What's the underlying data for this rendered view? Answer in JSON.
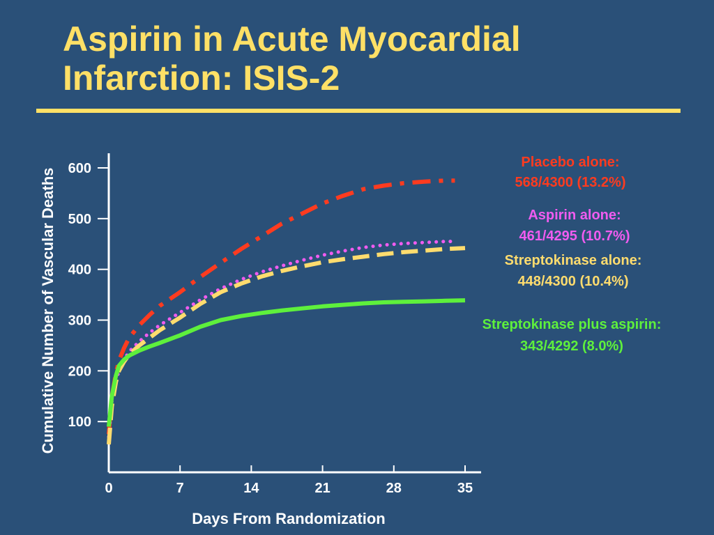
{
  "slide": {
    "title_line1": "Aspirin in Acute Myocardial",
    "title_line2": "Infarction: ISIS-2",
    "title_color": "#ffe066",
    "background_color": "#2a5078"
  },
  "chart_data": {
    "type": "line",
    "title": "",
    "xlabel": "Days From Randomization",
    "ylabel": "Cumulative Number of Vascular Deaths",
    "xlim": [
      0,
      35
    ],
    "ylim": [
      0,
      600
    ],
    "xticks": [
      0,
      7,
      14,
      21,
      28,
      35
    ],
    "yticks": [
      100,
      200,
      300,
      400,
      500,
      600
    ],
    "grid": false,
    "legend_position": "right",
    "series": [
      {
        "key": "placebo",
        "label_line1": "Placebo alone:",
        "label_line2": "568/4300 (13.2%)",
        "color": "#ff3b1f",
        "style": "dash-dot",
        "x": [
          0,
          0.3,
          0.7,
          1,
          1.5,
          2,
          3,
          4,
          5,
          7,
          9,
          11,
          13,
          15,
          17,
          19,
          21,
          23,
          25,
          27,
          29,
          31,
          33,
          34
        ],
        "y": [
          75,
          150,
          195,
          220,
          245,
          265,
          290,
          310,
          328,
          355,
          385,
          413,
          440,
          465,
          490,
          510,
          530,
          545,
          558,
          565,
          570,
          573,
          575,
          575
        ]
      },
      {
        "key": "aspirin",
        "label_line1": "Aspirin alone:",
        "label_line2": "461/4295 (10.7%)",
        "color": "#f05cf0",
        "style": "dotted",
        "x": [
          0,
          0.3,
          0.7,
          1,
          1.5,
          2,
          3,
          4,
          5,
          7,
          9,
          11,
          13,
          15,
          17,
          19,
          21,
          23,
          25,
          27,
          29,
          31,
          33,
          34
        ],
        "y": [
          70,
          140,
          180,
          200,
          222,
          238,
          258,
          275,
          290,
          315,
          340,
          362,
          380,
          395,
          407,
          418,
          428,
          436,
          443,
          448,
          451,
          453,
          455,
          455
        ]
      },
      {
        "key": "sk",
        "label_line1": "Streptokinase alone:",
        "label_line2": "448/4300 (10.4%)",
        "color": "#ffdc6e",
        "style": "dashed",
        "x": [
          0,
          0.3,
          0.7,
          1,
          1.5,
          2,
          3,
          4,
          5,
          7,
          9,
          11,
          13,
          15,
          17,
          19,
          21,
          23,
          25,
          27,
          29,
          31,
          33,
          35
        ],
        "y": [
          55,
          130,
          178,
          200,
          218,
          232,
          250,
          265,
          280,
          305,
          332,
          355,
          372,
          386,
          397,
          406,
          414,
          420,
          425,
          430,
          434,
          437,
          440,
          442
        ]
      },
      {
        "key": "sk_aspirin",
        "label_line1": "Streptokinase plus aspirin:",
        "label_line2": "343/4292 (8.0%)",
        "color": "#5ef03c",
        "style": "solid",
        "x": [
          0,
          0.3,
          0.7,
          1,
          1.5,
          2,
          3,
          4,
          5,
          7,
          9,
          11,
          13,
          15,
          17,
          19,
          21,
          23,
          25,
          27,
          29,
          31,
          33,
          35
        ],
        "y": [
          90,
          150,
          190,
          210,
          222,
          230,
          240,
          248,
          255,
          270,
          287,
          300,
          308,
          314,
          319,
          323,
          327,
          330,
          333,
          335,
          336,
          337,
          338,
          339
        ]
      }
    ]
  }
}
